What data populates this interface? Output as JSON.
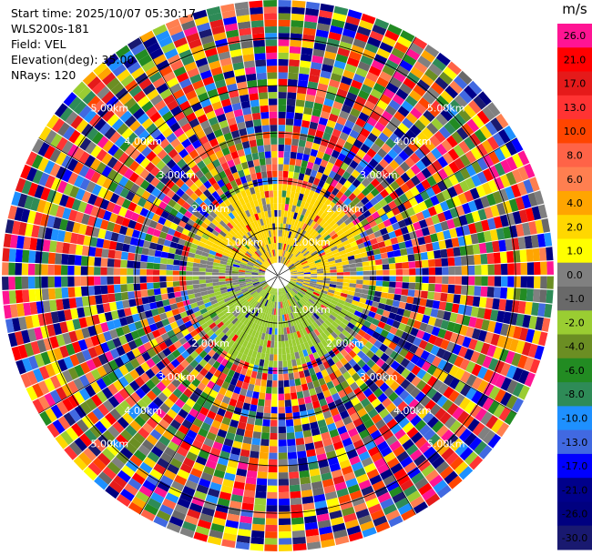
{
  "header": {
    "start_time": "Start time: 2025/10/07 05:30:17",
    "instrument": "WLS200s-181",
    "field": "Field: VEL",
    "elevation": "Elevation(deg): 35.00",
    "nrays": "NRays: 120"
  },
  "chart_data": {
    "type": "heatmap",
    "projection": "polar-ppi",
    "field": "VEL",
    "units": "m/s",
    "n_rays": 120,
    "elevation_deg": 35.0,
    "max_range_km": 5.8,
    "range_rings_km": [
      1.0,
      2.0,
      3.0,
      4.0,
      5.0
    ],
    "range_labels": {
      "ring_1": "1.00km",
      "ring_2": "2.00km",
      "ring_3": "3.00km",
      "ring_4": "4.00km",
      "ring_5": "5.00km"
    },
    "colorbar": {
      "unit_label": "m/s",
      "tick_labels": [
        "26.0",
        "21.0",
        "17.0",
        "13.0",
        "10.0",
        "8.0",
        "6.0",
        "4.0",
        "2.0",
        "1.0",
        "0.0",
        "-1.0",
        "-2.0",
        "-4.0",
        "-6.0",
        "-8.0",
        "-10.0",
        "-13.0",
        "-17.0",
        "-21.0",
        "-26.0",
        "-30.0"
      ],
      "colors": [
        "#ff1493",
        "#ff0000",
        "#e51a1a",
        "#ff3333",
        "#ff4500",
        "#ff6347",
        "#ff7f50",
        "#ffa500",
        "#ffd700",
        "#ffff00",
        "#808080",
        "#696969",
        "#9acd32",
        "#6b8e23",
        "#228b22",
        "#2e8b57",
        "#1e90ff",
        "#4169e1",
        "#0000ff",
        "#00008b",
        "#000080",
        "#191970"
      ]
    },
    "clear_air_region": {
      "max_range_km": 2.0,
      "positive_color": "#ffd700",
      "near_zero_color": "#808080",
      "negative_color": "#9acd32"
    }
  }
}
